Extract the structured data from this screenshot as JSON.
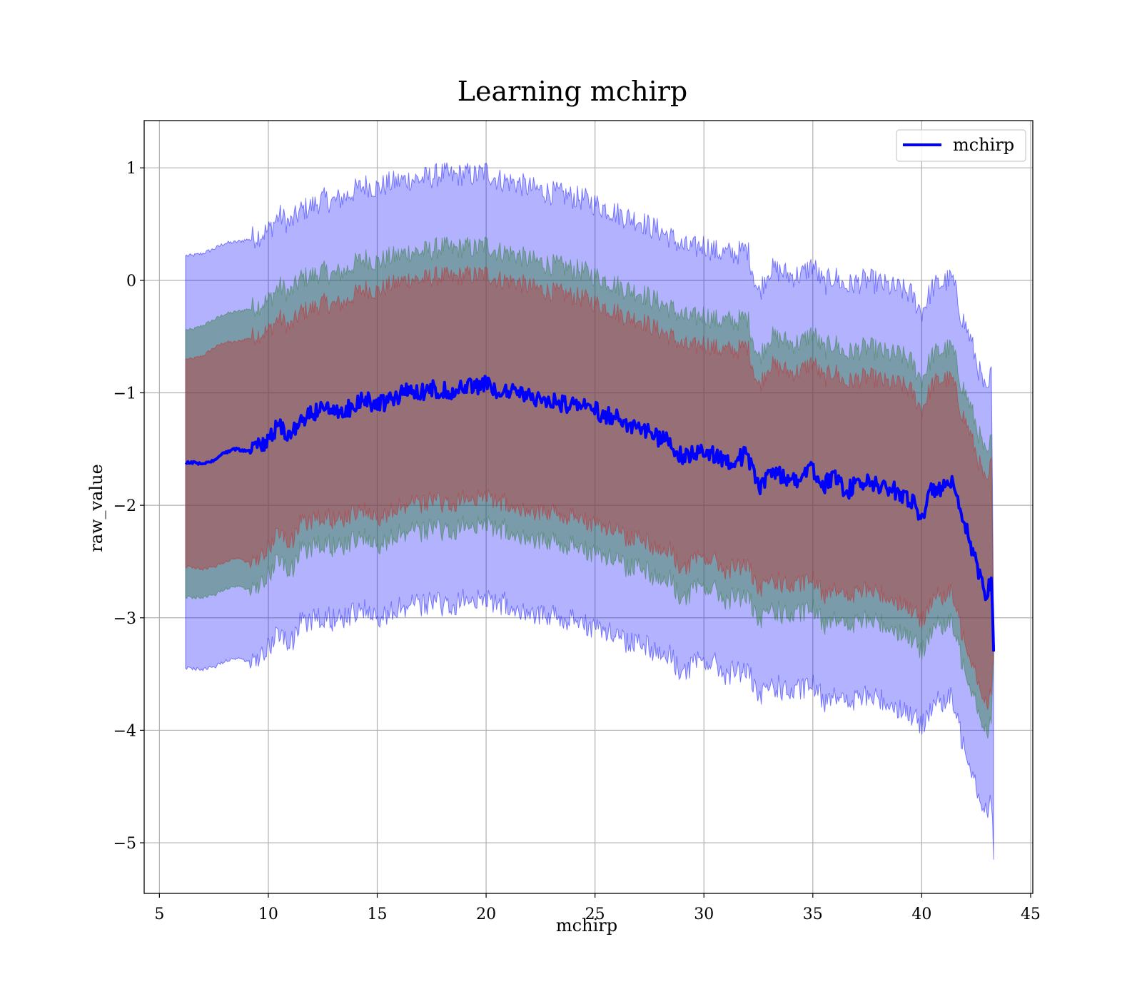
{
  "chart_data": {
    "type": "area",
    "title": "Learning mchirp",
    "xlabel": "mchirp",
    "ylabel": "raw_value",
    "xlim": [
      4.3,
      45.1
    ],
    "ylim": [
      -5.45,
      1.42
    ],
    "xticks": [
      5,
      10,
      15,
      20,
      25,
      30,
      35,
      40,
      45
    ],
    "yticks": [
      1,
      0,
      -1,
      -2,
      -3,
      -4,
      -5
    ],
    "ytick_labels": [
      "1",
      "0",
      "−1",
      "−2",
      "−3",
      "−4",
      "−5"
    ],
    "grid": true,
    "legend": {
      "position": "top-right",
      "entries": [
        "mchirp"
      ]
    },
    "colors": {
      "mean_line": "#0000ff",
      "band_3sigma": "#0000ff",
      "band_2sigma": "#2e7d32",
      "band_1sigma": "#c62828"
    },
    "series": [
      {
        "name": "mchirp",
        "x": [
          6.2,
          6.5,
          7.0,
          7.5,
          8.0,
          8.5,
          9.0,
          9.5,
          10.0,
          10.5,
          11.0,
          11.5,
          12.0,
          12.5,
          13.0,
          13.5,
          14.0,
          14.5,
          15.0,
          15.5,
          16.0,
          16.5,
          17.0,
          17.5,
          18.0,
          18.5,
          19.0,
          19.5,
          20.0,
          20.5,
          21.0,
          21.5,
          22.0,
          22.5,
          23.0,
          23.5,
          24.0,
          24.5,
          25.0,
          25.5,
          26.0,
          26.5,
          27.0,
          27.5,
          28.0,
          28.5,
          29.0,
          29.5,
          30.0,
          30.5,
          31.0,
          31.5,
          32.0,
          32.5,
          33.0,
          33.5,
          34.0,
          34.5,
          35.0,
          35.5,
          36.0,
          36.5,
          37.0,
          37.5,
          38.0,
          38.5,
          39.0,
          39.5,
          40.0,
          40.5,
          41.0,
          41.4,
          41.8,
          42.2,
          42.6,
          43.0,
          43.2,
          43.3
        ],
        "values": [
          -1.62,
          -1.62,
          -1.63,
          -1.6,
          -1.53,
          -1.5,
          -1.52,
          -1.48,
          -1.42,
          -1.28,
          -1.38,
          -1.22,
          -1.2,
          -1.14,
          -1.18,
          -1.16,
          -1.1,
          -1.06,
          -1.12,
          -1.06,
          -1.02,
          -0.98,
          -1.0,
          -0.96,
          -0.97,
          -0.98,
          -0.94,
          -0.96,
          -0.92,
          -0.97,
          -0.98,
          -1.0,
          -1.04,
          -1.05,
          -1.06,
          -1.1,
          -1.1,
          -1.12,
          -1.16,
          -1.2,
          -1.22,
          -1.3,
          -1.28,
          -1.36,
          -1.42,
          -1.44,
          -1.58,
          -1.55,
          -1.5,
          -1.55,
          -1.6,
          -1.58,
          -1.55,
          -1.85,
          -1.7,
          -1.72,
          -1.78,
          -1.75,
          -1.68,
          -1.82,
          -1.74,
          -1.88,
          -1.82,
          -1.8,
          -1.82,
          -1.86,
          -1.88,
          -1.95,
          -2.1,
          -1.85,
          -1.85,
          -1.82,
          -2.1,
          -2.3,
          -2.6,
          -2.8,
          -2.62,
          -3.3
        ],
        "sigma1_upper": [
          -0.7,
          -0.7,
          -0.67,
          -0.6,
          -0.55,
          -0.55,
          -0.52,
          -0.48,
          -0.45,
          -0.33,
          -0.42,
          -0.28,
          -0.25,
          -0.2,
          -0.22,
          -0.2,
          -0.12,
          -0.07,
          -0.1,
          -0.05,
          -0.02,
          0.02,
          0.0,
          0.03,
          0.04,
          0.02,
          0.05,
          0.04,
          0.06,
          0.01,
          0.0,
          -0.02,
          -0.06,
          -0.08,
          -0.1,
          -0.12,
          -0.14,
          -0.16,
          -0.2,
          -0.24,
          -0.28,
          -0.33,
          -0.34,
          -0.4,
          -0.45,
          -0.5,
          -0.58,
          -0.6,
          -0.55,
          -0.6,
          -0.62,
          -0.62,
          -0.58,
          -0.95,
          -0.75,
          -0.78,
          -0.82,
          -0.8,
          -0.72,
          -0.88,
          -0.8,
          -0.92,
          -0.88,
          -0.86,
          -0.88,
          -0.92,
          -0.92,
          -0.98,
          -1.15,
          -0.92,
          -0.88,
          -0.88,
          -1.15,
          -1.35,
          -1.6,
          -1.85,
          -1.6,
          -3.25
        ],
        "sigma1_lower": [
          -2.55,
          -2.55,
          -2.57,
          -2.55,
          -2.5,
          -2.47,
          -2.5,
          -2.46,
          -2.38,
          -2.22,
          -2.35,
          -2.15,
          -2.14,
          -2.08,
          -2.13,
          -2.12,
          -2.06,
          -2.04,
          -2.12,
          -2.07,
          -2.02,
          -1.98,
          -2.0,
          -1.95,
          -1.98,
          -1.98,
          -1.94,
          -1.96,
          -1.9,
          -1.96,
          -1.98,
          -2.0,
          -2.04,
          -2.05,
          -2.06,
          -2.1,
          -2.1,
          -2.12,
          -2.16,
          -2.2,
          -2.2,
          -2.3,
          -2.25,
          -2.34,
          -2.4,
          -2.4,
          -2.58,
          -2.5,
          -2.46,
          -2.5,
          -2.58,
          -2.55,
          -2.52,
          -2.8,
          -2.66,
          -2.68,
          -2.74,
          -2.7,
          -2.66,
          -2.8,
          -2.7,
          -2.84,
          -2.78,
          -2.75,
          -2.78,
          -2.82,
          -2.86,
          -2.92,
          -3.05,
          -2.8,
          -2.82,
          -2.78,
          -3.1,
          -3.3,
          -3.55,
          -3.8,
          -3.6,
          -3.35
        ],
        "sigma2_upper": [
          -0.44,
          -0.44,
          -0.4,
          -0.35,
          -0.3,
          -0.28,
          -0.26,
          -0.22,
          -0.18,
          -0.05,
          -0.12,
          0.02,
          0.04,
          0.08,
          0.05,
          0.08,
          0.15,
          0.2,
          0.16,
          0.2,
          0.22,
          0.26,
          0.25,
          0.27,
          0.3,
          0.27,
          0.3,
          0.28,
          0.32,
          0.26,
          0.25,
          0.22,
          0.18,
          0.16,
          0.14,
          0.12,
          0.1,
          0.08,
          0.04,
          0.0,
          -0.04,
          -0.08,
          -0.1,
          -0.15,
          -0.2,
          -0.25,
          -0.32,
          -0.34,
          -0.3,
          -0.35,
          -0.36,
          -0.36,
          -0.33,
          -0.7,
          -0.5,
          -0.52,
          -0.56,
          -0.55,
          -0.46,
          -0.62,
          -0.55,
          -0.66,
          -0.62,
          -0.6,
          -0.62,
          -0.66,
          -0.66,
          -0.72,
          -0.88,
          -0.66,
          -0.62,
          -0.6,
          -0.9,
          -1.1,
          -1.35,
          -1.6,
          -1.4,
          -3.2
        ],
        "sigma2_lower": [
          -2.82,
          -2.82,
          -2.82,
          -2.8,
          -2.74,
          -2.72,
          -2.74,
          -2.7,
          -2.62,
          -2.46,
          -2.6,
          -2.4,
          -2.38,
          -2.32,
          -2.37,
          -2.36,
          -2.3,
          -2.28,
          -2.36,
          -2.31,
          -2.26,
          -2.22,
          -2.25,
          -2.2,
          -2.22,
          -2.22,
          -2.18,
          -2.2,
          -2.15,
          -2.2,
          -2.22,
          -2.24,
          -2.28,
          -2.3,
          -2.32,
          -2.36,
          -2.36,
          -2.38,
          -2.42,
          -2.46,
          -2.46,
          -2.56,
          -2.5,
          -2.6,
          -2.66,
          -2.66,
          -2.85,
          -2.76,
          -2.72,
          -2.76,
          -2.84,
          -2.82,
          -2.8,
          -3.08,
          -2.92,
          -2.95,
          -3.0,
          -2.96,
          -2.92,
          -3.06,
          -2.96,
          -3.1,
          -3.04,
          -3.02,
          -3.04,
          -3.08,
          -3.12,
          -3.18,
          -3.32,
          -3.06,
          -3.08,
          -3.05,
          -3.35,
          -3.55,
          -3.8,
          -4.05,
          -3.85,
          -3.4
        ],
        "sigma3_upper": [
          0.22,
          0.22,
          0.24,
          0.28,
          0.33,
          0.34,
          0.36,
          0.4,
          0.44,
          0.58,
          0.5,
          0.62,
          0.66,
          0.72,
          0.7,
          0.74,
          0.8,
          0.85,
          0.82,
          0.86,
          0.88,
          0.9,
          0.9,
          0.92,
          0.95,
          0.92,
          0.95,
          0.93,
          0.97,
          0.9,
          0.88,
          0.86,
          0.82,
          0.8,
          0.78,
          0.76,
          0.74,
          0.72,
          0.68,
          0.64,
          0.6,
          0.56,
          0.54,
          0.48,
          0.44,
          0.38,
          0.3,
          0.28,
          0.32,
          0.26,
          0.24,
          0.24,
          0.28,
          -0.12,
          0.1,
          0.08,
          0.04,
          0.05,
          0.14,
          -0.04,
          0.04,
          -0.06,
          -0.02,
          0.0,
          -0.02,
          -0.06,
          -0.08,
          -0.12,
          -0.28,
          -0.06,
          -0.02,
          0.02,
          -0.3,
          -0.5,
          -0.78,
          -1.05,
          -0.8,
          -3.1
        ],
        "sigma3_lower": [
          -3.45,
          -3.45,
          -3.46,
          -3.44,
          -3.38,
          -3.36,
          -3.38,
          -3.34,
          -3.26,
          -3.12,
          -3.24,
          -3.04,
          -3.02,
          -2.98,
          -3.02,
          -3.0,
          -2.95,
          -2.92,
          -3.0,
          -2.96,
          -2.92,
          -2.88,
          -2.9,
          -2.86,
          -2.88,
          -2.88,
          -2.84,
          -2.86,
          -2.82,
          -2.86,
          -2.88,
          -2.9,
          -2.94,
          -2.96,
          -2.98,
          -3.02,
          -3.02,
          -3.04,
          -3.08,
          -3.12,
          -3.14,
          -3.22,
          -3.18,
          -3.26,
          -3.32,
          -3.34,
          -3.5,
          -3.42,
          -3.38,
          -3.42,
          -3.5,
          -3.48,
          -3.46,
          -3.75,
          -3.6,
          -3.62,
          -3.68,
          -3.64,
          -3.6,
          -3.74,
          -3.64,
          -3.78,
          -3.72,
          -3.7,
          -3.72,
          -3.76,
          -3.8,
          -3.86,
          -3.98,
          -3.74,
          -3.76,
          -3.72,
          -4.05,
          -4.25,
          -4.55,
          -4.75,
          -4.55,
          -5.15
        ]
      }
    ]
  }
}
